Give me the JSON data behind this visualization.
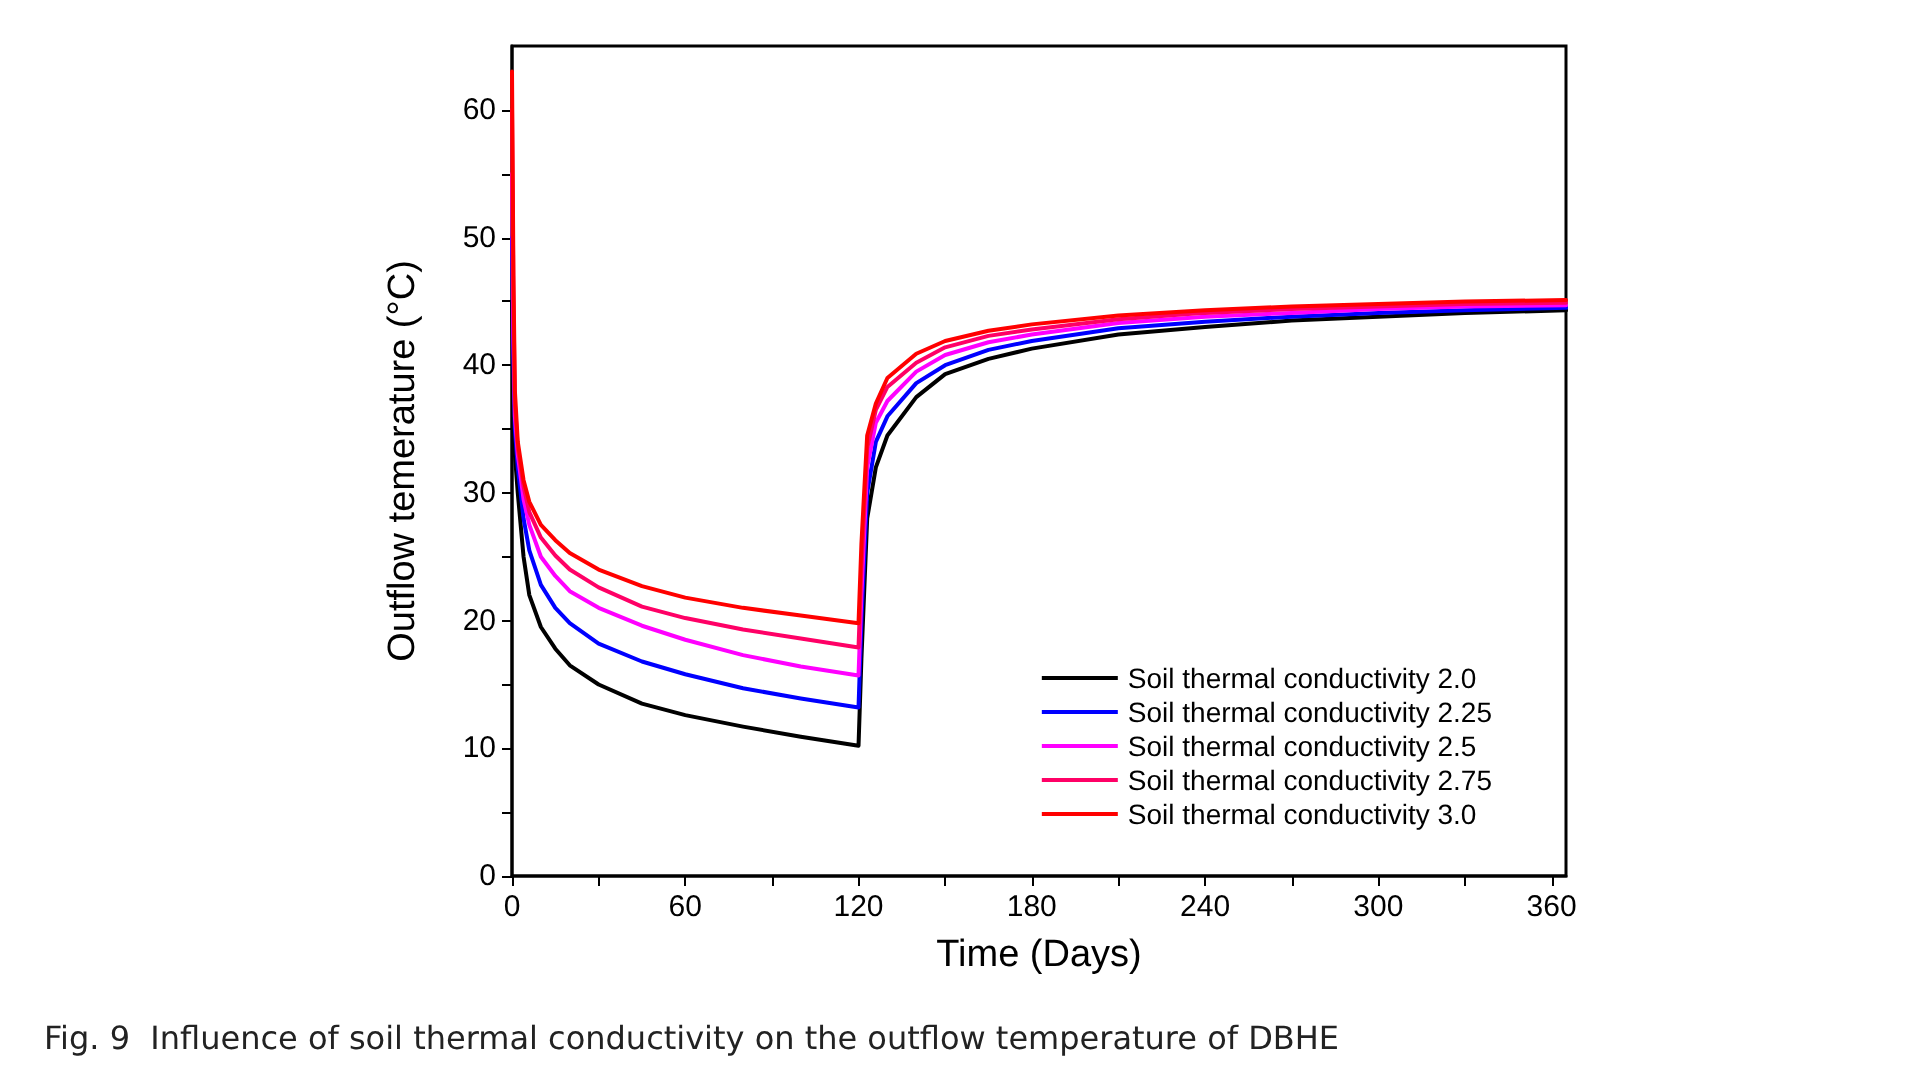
{
  "chart_data": {
    "type": "line",
    "xlabel": "Time (Days)",
    "ylabel": "Outflow temerature (°C)",
    "annotations": [
      "Fig. 9  Influence of soil thermal conductivity on the outflow temperature of DBHE"
    ],
    "x": [
      0,
      0.5,
      1,
      2,
      4,
      6,
      10,
      15,
      20,
      30,
      45,
      60,
      80,
      100,
      120,
      121,
      123,
      126,
      130,
      140,
      150,
      165,
      180,
      210,
      240,
      270,
      300,
      330,
      365
    ],
    "series": [
      {
        "name": "Soil thermal conductivity 2.0",
        "color": "#000000",
        "values": [
          45,
          38,
          33,
          30,
          25,
          22,
          19.5,
          17.8,
          16.5,
          15,
          13.5,
          12.6,
          11.7,
          10.9,
          10.2,
          17,
          28,
          32,
          34.5,
          37.5,
          39.3,
          40.5,
          41.3,
          42.4,
          43,
          43.5,
          43.8,
          44.1,
          44.3
        ]
      },
      {
        "name": "Soil thermal conductivity 2.25",
        "color": "#0000ff",
        "values": [
          50,
          40,
          35,
          32,
          28,
          25.5,
          22.8,
          21,
          19.8,
          18.2,
          16.8,
          15.8,
          14.7,
          13.9,
          13.2,
          20,
          30,
          34,
          36,
          38.6,
          40,
          41.2,
          41.9,
          42.9,
          43.4,
          43.8,
          44.1,
          44.3,
          44.5
        ]
      },
      {
        "name": "Soil thermal conductivity 2.5",
        "color": "#ff00ff",
        "values": [
          55,
          42,
          36,
          33,
          29.5,
          27.5,
          25,
          23.5,
          22.3,
          21,
          19.6,
          18.5,
          17.3,
          16.4,
          15.7,
          22,
          32,
          35.5,
          37.2,
          39.5,
          40.8,
          41.8,
          42.4,
          43.3,
          43.8,
          44.1,
          44.4,
          44.6,
          44.7
        ]
      },
      {
        "name": "Soil thermal conductivity 2.75",
        "color": "#ff0066",
        "values": [
          60,
          45,
          37,
          33.5,
          30.5,
          28.5,
          26.5,
          25.1,
          24,
          22.6,
          21.1,
          20.2,
          19.3,
          18.6,
          17.9,
          24,
          33.5,
          36.5,
          38.3,
          40.2,
          41.4,
          42.3,
          42.8,
          43.6,
          44.1,
          44.4,
          44.6,
          44.8,
          44.9
        ]
      },
      {
        "name": "Soil thermal conductivity 3.0",
        "color": "#ff0000",
        "values": [
          63,
          47,
          38,
          34,
          31,
          29.3,
          27.5,
          26.3,
          25.3,
          24,
          22.7,
          21.8,
          21,
          20.4,
          19.8,
          26,
          34.5,
          37,
          39,
          40.9,
          41.9,
          42.7,
          43.2,
          43.9,
          44.3,
          44.6,
          44.8,
          45,
          45.1
        ]
      }
    ],
    "xlim": [
      0,
      365
    ],
    "xticks": [
      0,
      {
        "value": 30,
        "label": null
      },
      60,
      {
        "value": 90,
        "label": null
      },
      120,
      {
        "value": 150,
        "label": null
      },
      180,
      {
        "value": 210,
        "label": null
      },
      240,
      {
        "value": 270,
        "label": null
      },
      300,
      {
        "value": 330,
        "label": null
      },
      360
    ],
    "ylim": [
      0,
      65
    ],
    "yticks": [
      0,
      {
        "value": 5,
        "label": null
      },
      10,
      {
        "value": 15,
        "label": null
      },
      20,
      {
        "value": 25,
        "label": null
      },
      30,
      {
        "value": 35,
        "label": null
      },
      40,
      {
        "value": 45,
        "label": null
      },
      50,
      {
        "value": 55,
        "label": null
      },
      60
    ],
    "grid": false,
    "legend": "bottom right",
    "marker": "none",
    "line_style": "solid"
  }
}
